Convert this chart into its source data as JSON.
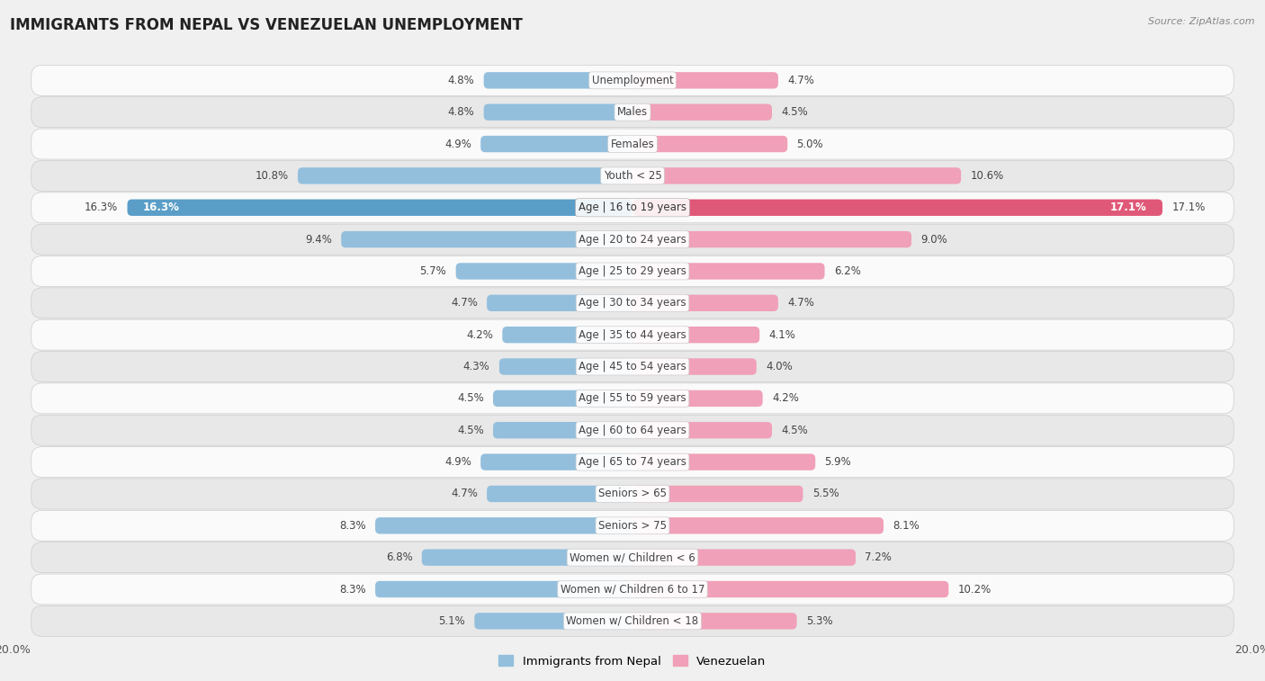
{
  "title": "IMMIGRANTS FROM NEPAL VS VENEZUELAN UNEMPLOYMENT",
  "source": "Source: ZipAtlas.com",
  "categories": [
    "Unemployment",
    "Males",
    "Females",
    "Youth < 25",
    "Age | 16 to 19 years",
    "Age | 20 to 24 years",
    "Age | 25 to 29 years",
    "Age | 30 to 34 years",
    "Age | 35 to 44 years",
    "Age | 45 to 54 years",
    "Age | 55 to 59 years",
    "Age | 60 to 64 years",
    "Age | 65 to 74 years",
    "Seniors > 65",
    "Seniors > 75",
    "Women w/ Children < 6",
    "Women w/ Children 6 to 17",
    "Women w/ Children < 18"
  ],
  "nepal_values": [
    4.8,
    4.8,
    4.9,
    10.8,
    16.3,
    9.4,
    5.7,
    4.7,
    4.2,
    4.3,
    4.5,
    4.5,
    4.9,
    4.7,
    8.3,
    6.8,
    8.3,
    5.1
  ],
  "venezuelan_values": [
    4.7,
    4.5,
    5.0,
    10.6,
    17.1,
    9.0,
    6.2,
    4.7,
    4.1,
    4.0,
    4.2,
    4.5,
    5.9,
    5.5,
    8.1,
    7.2,
    10.2,
    5.3
  ],
  "nepal_color": "#93bfdd",
  "venezuelan_color": "#f0a0b8",
  "nepal_highlight_color": "#5a9ec8",
  "venezuelan_highlight_color": "#e05878",
  "background_color": "#f0f0f0",
  "row_bg_light": "#fafafa",
  "row_bg_dark": "#e8e8e8",
  "xlim": 20.0,
  "label_fontsize": 8.5,
  "value_fontsize": 8.5,
  "legend_nepal": "Immigrants from Nepal",
  "legend_venezuelan": "Venezuelan"
}
